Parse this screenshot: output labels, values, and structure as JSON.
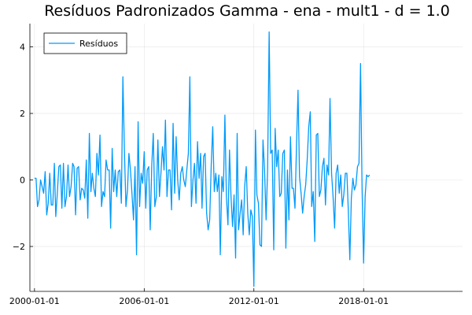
{
  "chart_data": {
    "type": "line",
    "title": "Resíduos Padronizados Gamma - ena - mult1 - d = 1.0",
    "xlabel": "",
    "ylabel": "",
    "x_type": "date",
    "x_start": "2000-01-01",
    "x_frequency": "monthly",
    "xlim": [
      "1999-10-01",
      "2023-06-01"
    ],
    "ylim": [
      -3.35,
      4.7
    ],
    "x_ticks": [
      "2000-01-01",
      "2006-01-01",
      "2012-01-01",
      "2018-01-01"
    ],
    "y_ticks": [
      4,
      2,
      0,
      -2
    ],
    "y_tick_labels": [
      "4",
      "2",
      "0",
      "−2"
    ],
    "grid": true,
    "legend_position": "top-left",
    "series": [
      {
        "name": "Resíduos",
        "color": "#009AFA",
        "values": [
          0.05,
          0.05,
          -0.8,
          -0.6,
          0.0,
          -0.2,
          -0.4,
          0.25,
          -1.05,
          -0.7,
          0.2,
          -0.75,
          -0.75,
          0.5,
          -1.1,
          -0.4,
          0.4,
          0.45,
          -0.85,
          0.5,
          -0.8,
          -0.5,
          0.45,
          -0.5,
          -0.2,
          0.5,
          0.4,
          -1.05,
          0.35,
          0.4,
          -0.6,
          -0.25,
          -0.3,
          -0.55,
          0.6,
          -1.15,
          1.4,
          -0.35,
          0.2,
          -0.25,
          -0.5,
          0.8,
          0.15,
          1.35,
          -0.8,
          -0.35,
          -0.5,
          0.6,
          0.3,
          0.3,
          -1.45,
          0.95,
          -0.35,
          0.3,
          -0.5,
          0.25,
          0.3,
          -0.7,
          3.1,
          0.9,
          -0.8,
          -0.3,
          0.8,
          0.3,
          -0.4,
          -1.2,
          0.4,
          -2.25,
          1.75,
          -0.8,
          0.2,
          -0.1,
          0.85,
          -0.85,
          0.3,
          0.4,
          -1.5,
          0.45,
          1.4,
          -0.8,
          -0.5,
          1.2,
          -0.5,
          0.2,
          1.0,
          0.3,
          1.8,
          -0.5,
          0.3,
          0.3,
          -0.9,
          1.7,
          -0.4,
          1.3,
          0.0,
          -0.6,
          0.2,
          0.4,
          0.0,
          -0.2,
          0.3,
          0.8,
          3.1,
          -0.8,
          0.0,
          0.5,
          -0.7,
          1.15,
          0.05,
          0.8,
          -0.85,
          0.7,
          0.8,
          -1.0,
          -1.5,
          -1.2,
          0.45,
          1.6,
          -0.35,
          0.2,
          -0.35,
          0.15,
          -2.25,
          0.1,
          -0.35,
          1.95,
          -0.5,
          -1.35,
          0.9,
          -0.5,
          -1.4,
          -0.45,
          -2.35,
          1.4,
          -1.5,
          -1.0,
          -0.6,
          -1.65,
          -0.2,
          0.4,
          -1.0,
          -1.65,
          -0.9,
          -1.1,
          -3.2,
          1.5,
          -0.45,
          -0.7,
          -1.95,
          -2.0,
          1.2,
          0.3,
          -1.2,
          0.3,
          4.45,
          0.8,
          0.9,
          -2.1,
          1.55,
          0.4,
          0.9,
          -0.5,
          -0.4,
          0.8,
          0.9,
          -2.05,
          0.3,
          -1.2,
          1.3,
          -0.25,
          -0.25,
          -0.85,
          1.0,
          2.7,
          0.1,
          -0.4,
          -1.0,
          -0.5,
          -0.15,
          0.6,
          1.6,
          2.05,
          -0.8,
          -0.35,
          -1.85,
          1.35,
          1.4,
          -0.5,
          -0.3,
          0.4,
          0.65,
          -0.75,
          0.45,
          0.15,
          2.45,
          0.2,
          -0.5,
          -1.45,
          0.2,
          0.45,
          -0.4,
          0.15,
          -0.8,
          -0.45,
          0.2,
          0.2,
          -0.9,
          -2.4,
          -0.55,
          0.05,
          -0.3,
          -0.15,
          0.4,
          0.5,
          3.5,
          -0.2,
          -2.5,
          -0.5,
          0.15,
          0.1,
          0.15
        ]
      }
    ]
  }
}
